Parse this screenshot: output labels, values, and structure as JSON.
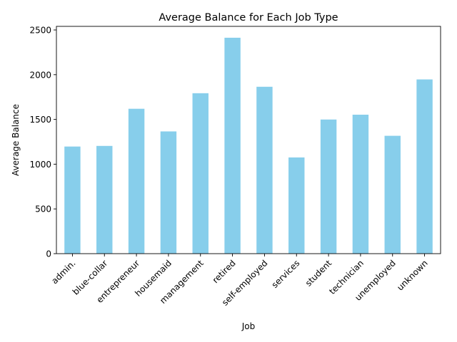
{
  "chart_data": {
    "type": "bar",
    "title": "Average Balance for Each Job Type",
    "xlabel": "Job",
    "ylabel": "Average Balance",
    "categories": [
      "admin.",
      "blue-collar",
      "entrepreneur",
      "housemaid",
      "management",
      "retired",
      "self-employed",
      "services",
      "student",
      "technician",
      "unemployed",
      "unknown"
    ],
    "values": [
      1197,
      1204,
      1619,
      1366,
      1793,
      2413,
      1865,
      1075,
      1499,
      1553,
      1317,
      1947
    ],
    "ylim": [
      0,
      2540
    ],
    "yticks": [
      0,
      500,
      1000,
      1500,
      2000,
      2500
    ],
    "bar_color": "#87ceeb",
    "grid": false,
    "legend": "none"
  }
}
